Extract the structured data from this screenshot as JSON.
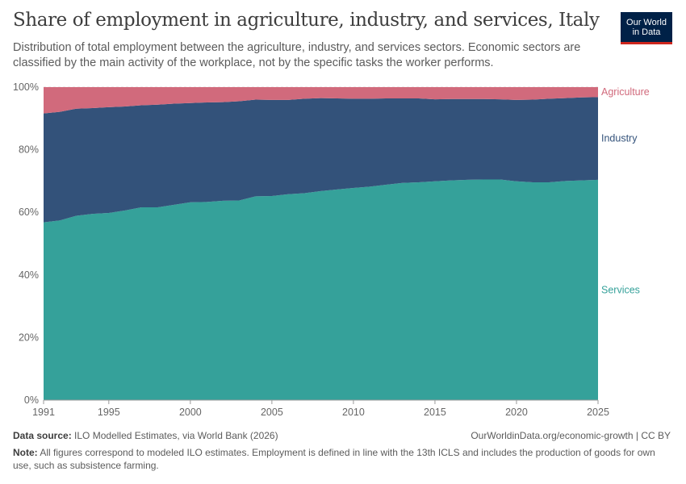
{
  "header": {
    "title": "Share of employment in agriculture, industry, and services, Italy",
    "subtitle": "Distribution of total employment between the agriculture, industry, and services sectors. Economic sectors are classified by the main activity of the workplace, not by the specific tasks the worker performs.",
    "logo_line1": "Our World",
    "logo_line2": "in Data"
  },
  "footer": {
    "source_label": "Data source:",
    "source_text": "ILO Modelled Estimates, via World Bank (2026)",
    "license": "OurWorldinData.org/economic-growth | CC BY",
    "note_label": "Note:",
    "note_text": "All figures correspond to modeled ILO estimates. Employment is defined in line with the 13th ICLS and includes the production of goods for own use, such as subsistence farming."
  },
  "chart_data": {
    "type": "area",
    "stacked": true,
    "x": [
      1991,
      1992,
      1993,
      1994,
      1995,
      1996,
      1997,
      1998,
      1999,
      2000,
      2001,
      2002,
      2003,
      2004,
      2005,
      2006,
      2007,
      2008,
      2009,
      2010,
      2011,
      2012,
      2013,
      2014,
      2015,
      2016,
      2017,
      2018,
      2019,
      2020,
      2021,
      2022,
      2023,
      2024,
      2025
    ],
    "series": [
      {
        "name": "Services",
        "color": "#35a19a",
        "values": [
          56.8,
          57.4,
          58.9,
          59.5,
          59.8,
          60.6,
          61.6,
          61.6,
          62.4,
          63.2,
          63.3,
          63.7,
          63.8,
          65.1,
          65.2,
          65.8,
          66.1,
          66.8,
          67.3,
          67.8,
          68.2,
          68.8,
          69.4,
          69.6,
          69.9,
          70.2,
          70.4,
          70.5,
          70.5,
          69.9,
          69.6,
          69.6,
          70.0,
          70.2,
          70.4
        ]
      },
      {
        "name": "Industry",
        "color": "#33527a",
        "values": [
          34.8,
          34.7,
          34.2,
          33.8,
          33.8,
          33.2,
          32.6,
          32.8,
          32.3,
          31.7,
          31.8,
          31.5,
          31.7,
          30.9,
          30.7,
          30.1,
          30.2,
          29.7,
          29.1,
          28.5,
          28.1,
          27.6,
          27.0,
          26.8,
          26.2,
          26.0,
          25.8,
          25.7,
          25.6,
          26.0,
          26.4,
          26.7,
          26.5,
          26.5,
          26.4
        ]
      },
      {
        "name": "Agriculture",
        "color": "#d16a7c",
        "values": [
          8.4,
          7.9,
          6.9,
          6.7,
          6.4,
          6.2,
          5.8,
          5.6,
          5.3,
          5.1,
          4.9,
          4.8,
          4.5,
          4.0,
          4.1,
          4.1,
          3.7,
          3.5,
          3.6,
          3.7,
          3.7,
          3.6,
          3.6,
          3.6,
          3.9,
          3.8,
          3.8,
          3.8,
          3.9,
          4.1,
          4.0,
          3.7,
          3.5,
          3.3,
          3.2
        ]
      }
    ],
    "y_ticks": [
      "0%",
      "20%",
      "40%",
      "60%",
      "80%",
      "100%"
    ],
    "y_tick_values": [
      0,
      20,
      40,
      60,
      80,
      100
    ],
    "x_ticks": [
      1991,
      1995,
      2000,
      2005,
      2010,
      2015,
      2020,
      2025
    ],
    "ylim": [
      0,
      100
    ],
    "xlim": [
      1991,
      2025
    ],
    "legend": "right, inline labels"
  }
}
